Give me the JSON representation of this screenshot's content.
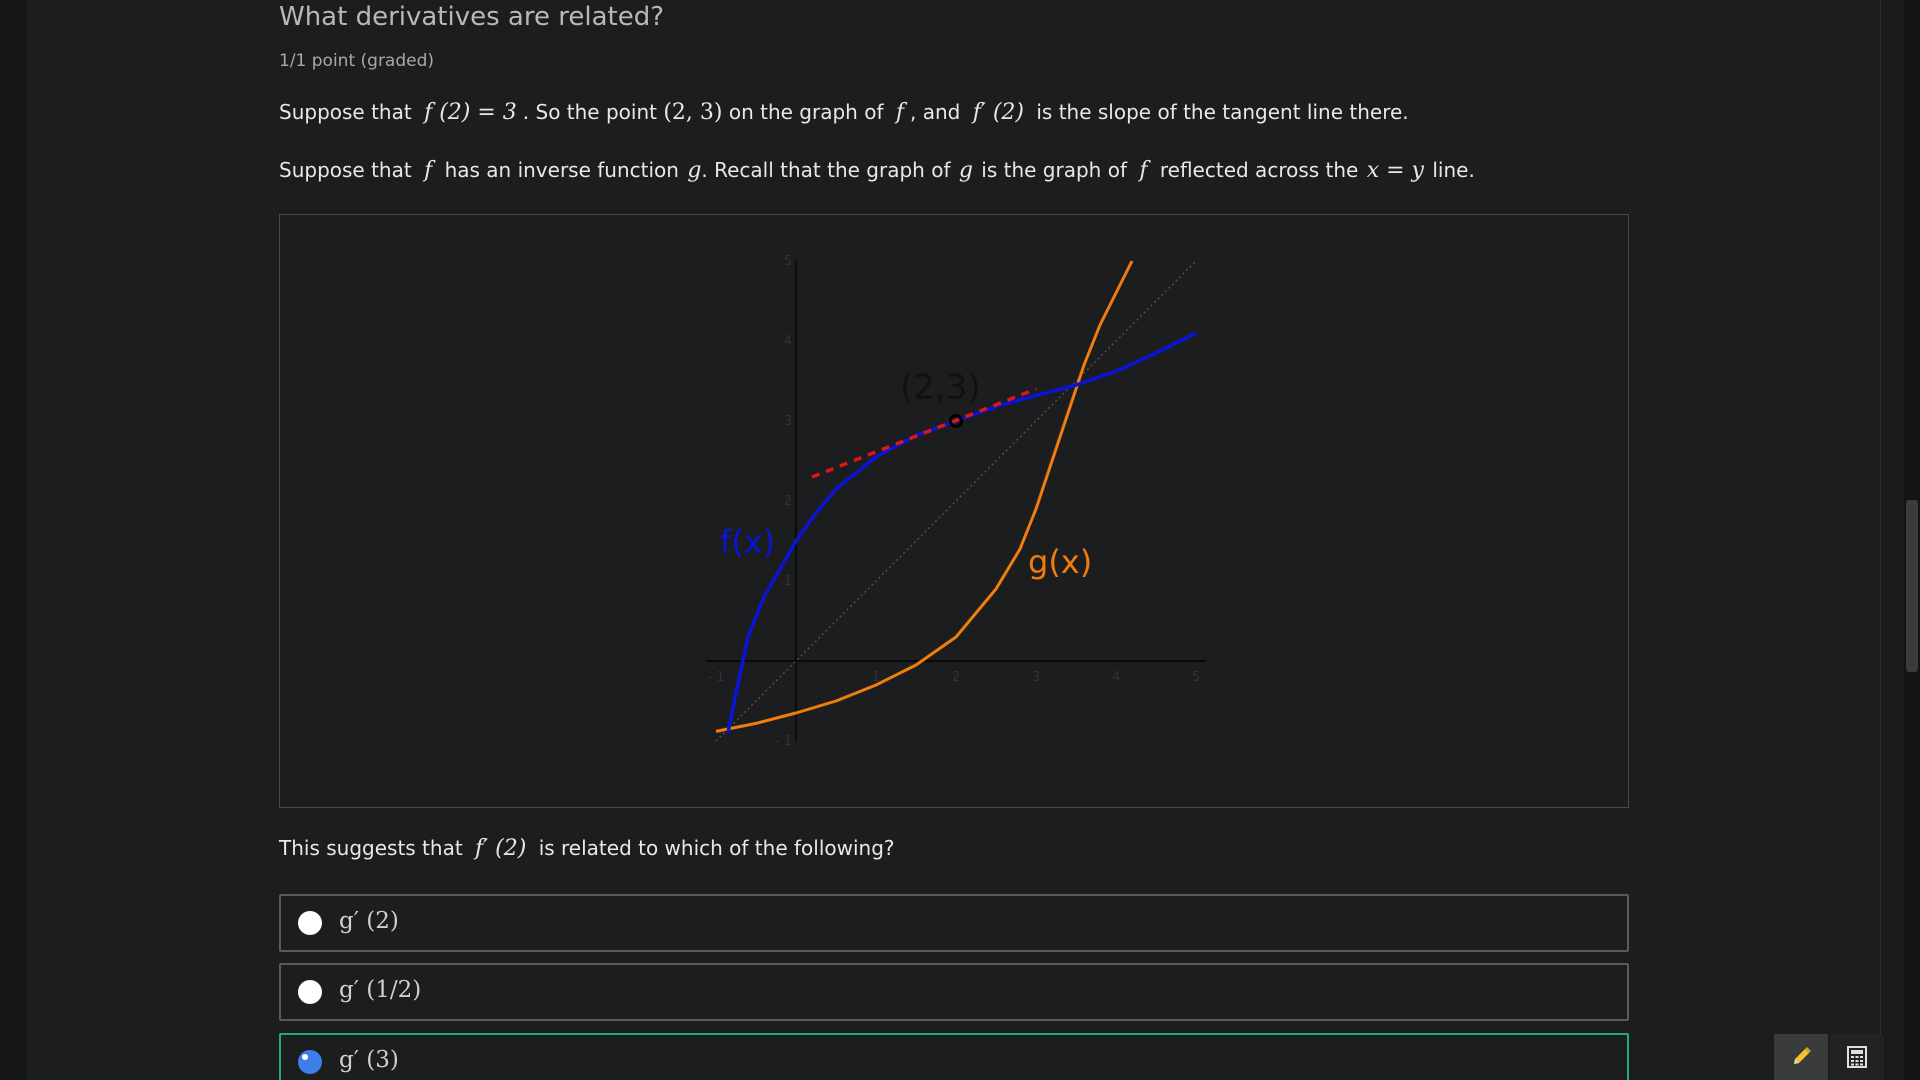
{
  "problem": {
    "title": "What derivatives are related?",
    "points": "1/1 point (graded)"
  },
  "para1": {
    "t1": "Suppose that",
    "m1": "f (2) = 3",
    "t2": ". So the point",
    "m2": "(2, 3)",
    "t3": "on the graph of",
    "m3": "f",
    "t4": ", and",
    "m4": "f′ (2)",
    "t5": "is the slope of the tangent line there."
  },
  "para2": {
    "t1": "Suppose that",
    "m1": "f",
    "t2": "has an inverse function",
    "m2": "g",
    "t3": ". Recall that the graph of",
    "m3": "g",
    "t4": "is the graph of",
    "m4": "f",
    "t5": "reflected across the",
    "m5": "x = y",
    "t6": "line."
  },
  "chart_data": {
    "type": "line",
    "xlim": [
      -1,
      5
    ],
    "ylim": [
      -1,
      5
    ],
    "x_ticks": [
      "- 1",
      "1",
      "2",
      "3",
      "4",
      "5"
    ],
    "y_ticks": [
      "- 1",
      "1",
      "2",
      "3",
      "4",
      "5"
    ],
    "point_label": "(2,3)",
    "point": [
      2,
      3
    ],
    "series": [
      {
        "name": "f(x)",
        "color": "#0a14d6",
        "x": [
          -0.85,
          -0.75,
          -0.6,
          -0.4,
          -0.2,
          0,
          0.25,
          0.5,
          1,
          1.5,
          2,
          2.5,
          3,
          3.5,
          4,
          4.5,
          5
        ],
        "y": [
          -0.9,
          -0.4,
          0.3,
          0.8,
          1.15,
          1.5,
          1.85,
          2.15,
          2.55,
          2.82,
          3.0,
          3.18,
          3.32,
          3.45,
          3.62,
          3.85,
          4.1
        ]
      },
      {
        "name": "g(x)",
        "color": "#f07d0c",
        "x": [
          -1,
          -0.5,
          0,
          0.5,
          1,
          1.5,
          2,
          2.5,
          2.8,
          3.0,
          3.2,
          3.4,
          3.6,
          3.8,
          4.0,
          4.2
        ],
        "y": [
          -0.88,
          -0.78,
          -0.65,
          -0.5,
          -0.3,
          -0.05,
          0.3,
          0.9,
          1.4,
          1.9,
          2.5,
          3.1,
          3.7,
          4.2,
          4.6,
          5.0
        ]
      },
      {
        "name": "tangent",
        "color": "#e0141a",
        "x": [
          0.2,
          3.0
        ],
        "y": [
          2.3,
          3.4
        ]
      },
      {
        "name": "y = x",
        "color": "#5a5a5a",
        "x": [
          -1,
          5
        ],
        "y": [
          -1,
          5
        ]
      }
    ]
  },
  "question": {
    "t1": "This suggests that",
    "m1": "f′ (2)",
    "t2": "is related to which of the following?"
  },
  "choices": [
    {
      "label": "g′ (2)",
      "selected": false
    },
    {
      "label": "g′ (1/2)",
      "selected": false
    },
    {
      "label": "g′ (3)",
      "selected": true
    }
  ],
  "toolbar": {
    "pencil": "pencil-icon",
    "calculator": "calculator-icon"
  }
}
